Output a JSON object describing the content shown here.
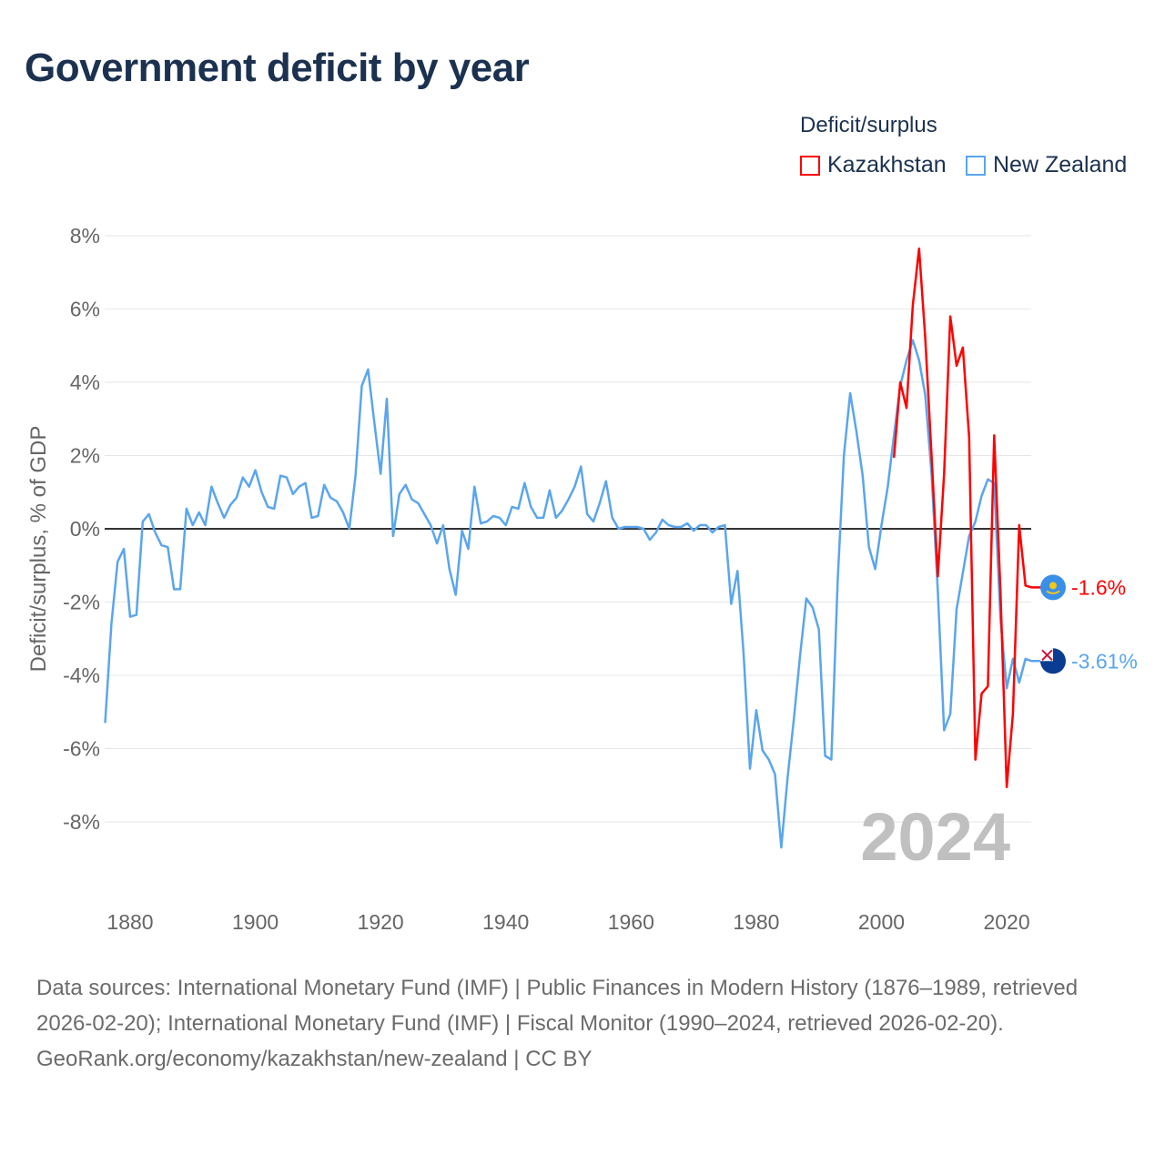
{
  "title": "Government deficit by year",
  "legend": {
    "title": "Deficit/surplus",
    "items": [
      {
        "label": "Kazakhstan",
        "color": "#ff0000"
      },
      {
        "label": "New Zealand",
        "color": "#5aa5ee"
      }
    ]
  },
  "year_watermark": "2024",
  "footer": {
    "sources": "Data sources: International Monetary Fund (IMF) | Public Finances in Modern History (1876–1989, retrieved 2026-02-20); International Monetary Fund (IMF) | Fiscal Monitor (1990–2024, retrieved 2026-02-20).",
    "credit": "GeoRank.org/economy/kazakhstan/new-zealand | CC BY"
  },
  "chart_data": {
    "type": "line",
    "title": "Government deficit by year",
    "xlabel": "",
    "ylabel": "Deficit/surplus, % of GDP",
    "xlim": [
      1876,
      2024
    ],
    "ylim": [
      -10,
      8.5
    ],
    "x_ticks": [
      "1880",
      "1900",
      "1920",
      "1940",
      "1960",
      "1980",
      "2000",
      "2020"
    ],
    "y_ticks": [
      "8%",
      "6%",
      "4%",
      "2%",
      "0%",
      "-2%",
      "-4%",
      "-6%",
      "-8%"
    ],
    "grid": true,
    "legend_position": "top-right",
    "series": [
      {
        "name": "New Zealand",
        "color": "#5aa5ee",
        "end_label": "-3.61%",
        "start_year": 1876,
        "values": [
          -5.3,
          -2.6,
          -0.9,
          -0.55,
          -2.4,
          -2.35,
          0.2,
          0.4,
          -0.1,
          -0.45,
          -0.5,
          -1.65,
          -1.65,
          0.55,
          0.1,
          0.45,
          0.1,
          1.15,
          0.7,
          0.3,
          0.65,
          0.85,
          1.4,
          1.15,
          1.6,
          1.0,
          0.6,
          0.55,
          1.45,
          1.4,
          0.95,
          1.15,
          1.25,
          0.3,
          0.35,
          1.2,
          0.85,
          0.75,
          0.45,
          0.0,
          1.45,
          3.9,
          4.35,
          2.9,
          1.5,
          3.55,
          -0.2,
          0.95,
          1.2,
          0.8,
          0.7,
          0.4,
          0.1,
          -0.4,
          0.1,
          -1.1,
          -1.8,
          -0.05,
          -0.55,
          1.15,
          0.15,
          0.2,
          0.35,
          0.3,
          0.1,
          0.6,
          0.55,
          1.25,
          0.6,
          0.3,
          0.3,
          1.05,
          0.3,
          0.5,
          0.8,
          1.15,
          1.7,
          0.4,
          0.2,
          0.7,
          1.3,
          0.3,
          0.0,
          0.05,
          0.05,
          0.05,
          0.0,
          -0.3,
          -0.1,
          0.25,
          0.1,
          0.05,
          0.05,
          0.15,
          -0.05,
          0.1,
          0.1,
          -0.1,
          0.05,
          0.1,
          -2.05,
          -1.15,
          -3.45,
          -6.55,
          -4.95,
          -6.05,
          -6.3,
          -6.7,
          -8.7,
          -6.8,
          -5.2,
          -3.45,
          -1.9,
          -2.15,
          -2.75,
          -6.2,
          -6.3,
          -1.45,
          2.0,
          3.7,
          2.65,
          1.45,
          -0.5,
          -1.1,
          0.1,
          1.15,
          2.55,
          3.9,
          4.6,
          5.15,
          4.6,
          3.65,
          1.5,
          -1.7,
          -5.5,
          -5.05,
          -2.2,
          -1.2,
          -0.2,
          0.2,
          0.9,
          1.35,
          1.25,
          -2.45,
          -4.35,
          -3.55,
          -4.2,
          -3.55,
          -3.61
        ]
      },
      {
        "name": "Kazakhstan",
        "color": "#ff0000",
        "end_label": "-1.6%",
        "start_year": 2002,
        "values": [
          1.94,
          4.0,
          3.3,
          6.1,
          7.65,
          5.2,
          2.0,
          -1.3,
          1.5,
          5.8,
          4.45,
          4.95,
          2.5,
          -6.3,
          -4.5,
          -4.3,
          2.55,
          -1.7,
          -7.05,
          -5.05,
          0.1,
          -1.55,
          -1.6
        ]
      }
    ]
  }
}
